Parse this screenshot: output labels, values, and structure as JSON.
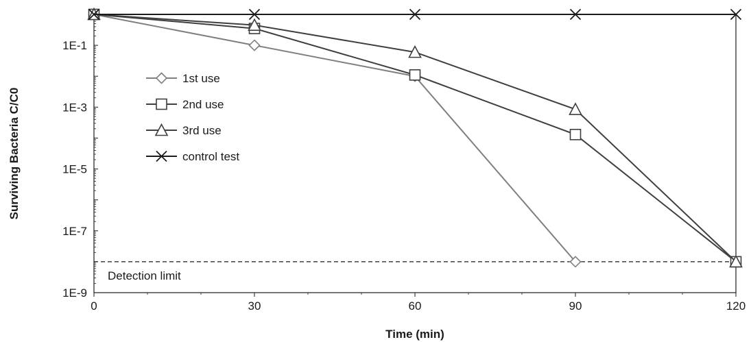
{
  "chart_data": {
    "type": "line",
    "title": "",
    "xlabel": "Time (min)",
    "ylabel": "Surviving Bacteria C/C0",
    "xlim": [
      0,
      120
    ],
    "ylim": [
      1e-09,
      1
    ],
    "y_scale": "log",
    "x_ticks": [
      0,
      30,
      60,
      90,
      120
    ],
    "x_tick_labels": [
      "0",
      "30",
      "60",
      "90",
      "120"
    ],
    "y_ticks": [
      0.1,
      0.001,
      1e-05,
      1e-07,
      1e-09
    ],
    "y_tick_labels": [
      "1E-1",
      "1E-3",
      "1E-5",
      "1E-7",
      "1E-9"
    ],
    "grid": false,
    "legend_position": "left",
    "series": [
      {
        "name": "1st use",
        "marker": "diamond",
        "color": "#7f7f7f",
        "x": [
          0,
          30,
          60,
          90
        ],
        "y": [
          1,
          0.1,
          0.01,
          1e-08
        ]
      },
      {
        "name": "2nd use",
        "marker": "square",
        "color": "#3f3f3f",
        "x": [
          0,
          30,
          60,
          90,
          120
        ],
        "y": [
          1,
          0.35,
          0.011,
          0.00013,
          1e-08
        ]
      },
      {
        "name": "3rd use",
        "marker": "triangle",
        "color": "#3f3f3f",
        "x": [
          0,
          30,
          60,
          90,
          120
        ],
        "y": [
          1,
          0.45,
          0.06,
          0.00085,
          1e-08
        ]
      },
      {
        "name": "control test",
        "marker": "x",
        "color": "#1a1a1a",
        "x": [
          0,
          30,
          60,
          90,
          120
        ],
        "y": [
          1,
          1,
          1,
          1,
          1
        ]
      }
    ],
    "reference_line": {
      "y": 1e-08,
      "label": "Detection limit",
      "style": "dashed"
    }
  }
}
